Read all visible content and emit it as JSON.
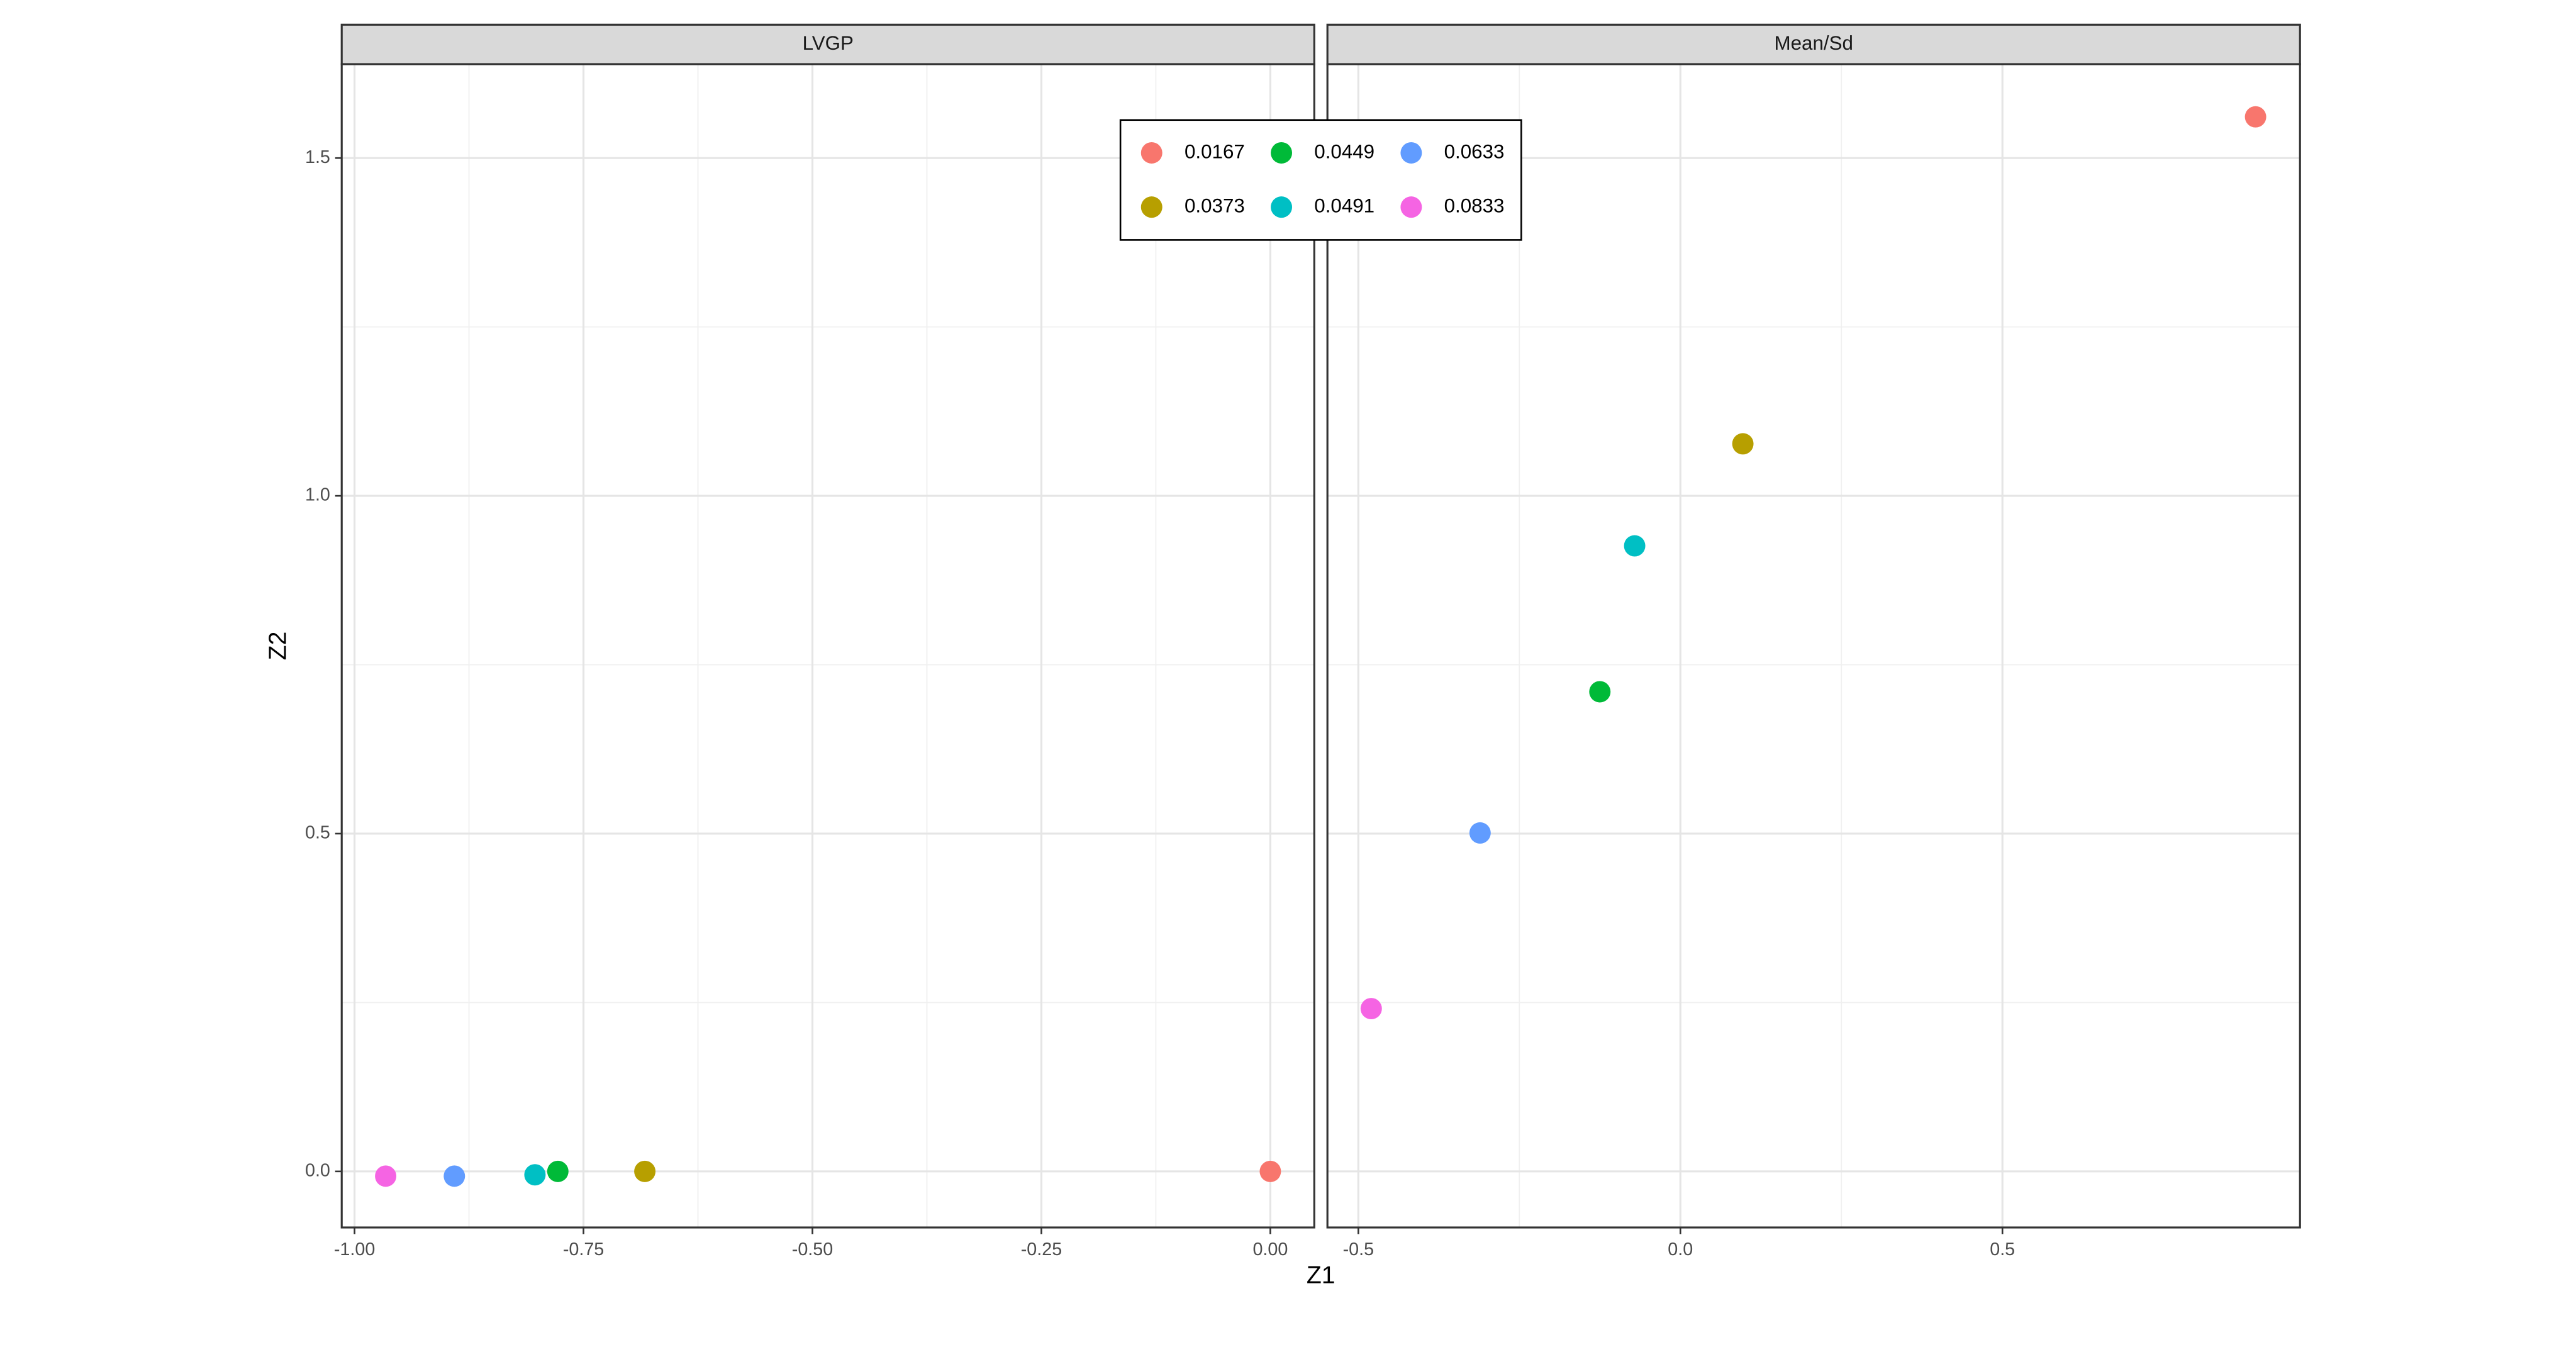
{
  "chart_data": {
    "type": "scatter",
    "x_label": "Z1",
    "y_label": "Z2",
    "grid": true,
    "legend_position": "top",
    "ylim": [
      -0.083,
      1.639
    ],
    "yticks": [
      {
        "value": 0,
        "label": "0.0"
      },
      0.5,
      {
        "value": 1,
        "label": "1.0"
      },
      1.5
    ],
    "series": [
      {
        "name": "0.0167",
        "color": "#F8766D"
      },
      {
        "name": "0.0373",
        "color": "#B79F00"
      },
      {
        "name": "0.0449",
        "color": "#00BA38"
      },
      {
        "name": "0.0491",
        "color": "#00BFC4"
      },
      {
        "name": "0.0633",
        "color": "#619CFF"
      },
      {
        "name": "0.0833",
        "color": "#F564E3"
      }
    ],
    "panels": [
      {
        "title": "LVGP",
        "xlim": [
          -1.014,
          0.048
        ],
        "xticks": [
          {
            "value": -1,
            "label": "-1.00"
          },
          -0.75,
          {
            "value": -0.5,
            "label": "-0.50"
          },
          -0.25,
          {
            "value": 0,
            "label": "0.00"
          }
        ],
        "x": [
          0,
          -0.683,
          -0.778,
          -0.803,
          -0.891,
          -0.966
        ],
        "y": [
          0,
          0,
          0,
          -0.005,
          -0.007,
          -0.007
        ]
      },
      {
        "title": "Mean/Sd",
        "xlim": [
          -0.548,
          0.962
        ],
        "xticks": [
          -0.5,
          {
            "value": 0,
            "label": "0.0"
          },
          0.5
        ],
        "x": [
          0.893,
          0.097,
          -0.125,
          -0.071,
          -0.311,
          -0.48
        ],
        "y": [
          1.561,
          1.077,
          0.71,
          0.926,
          0.501,
          0.241
        ]
      }
    ]
  }
}
